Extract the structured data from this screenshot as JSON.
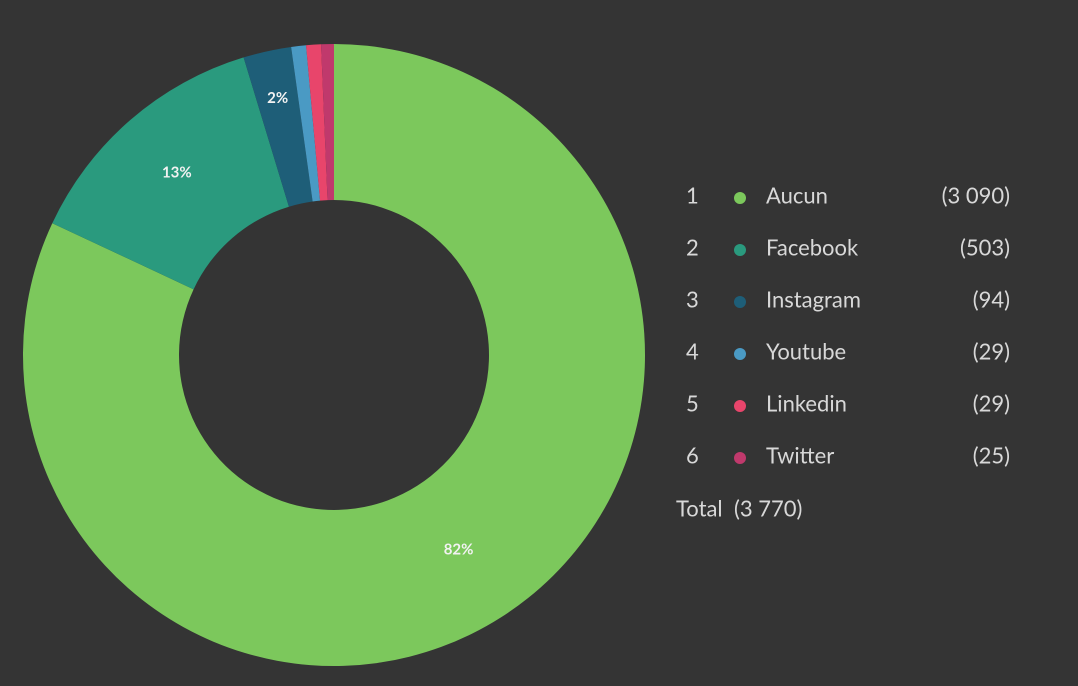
{
  "chart_data": {
    "type": "donut",
    "categories": [
      "Aucun",
      "Facebook",
      "Instagram",
      "Youtube",
      "Linkedin",
      "Twitter"
    ],
    "legend_numbers": [
      1,
      2,
      3,
      4,
      5,
      6
    ],
    "values": [
      3090,
      503,
      94,
      29,
      29,
      25
    ],
    "value_labels": [
      "(3 090)",
      "(503)",
      "(94)",
      "(29)",
      "(29)",
      "(25)"
    ],
    "slice_labels": [
      "82%",
      "13%",
      "2%",
      null,
      null,
      null
    ],
    "colors": [
      "#7cc85c",
      "#2a9a7e",
      "#1e5e78",
      "#4a9ac4",
      "#e8456b",
      "#c0396c"
    ],
    "total_text": "Total",
    "total": 3770,
    "total_value_label": "(3 770)"
  }
}
